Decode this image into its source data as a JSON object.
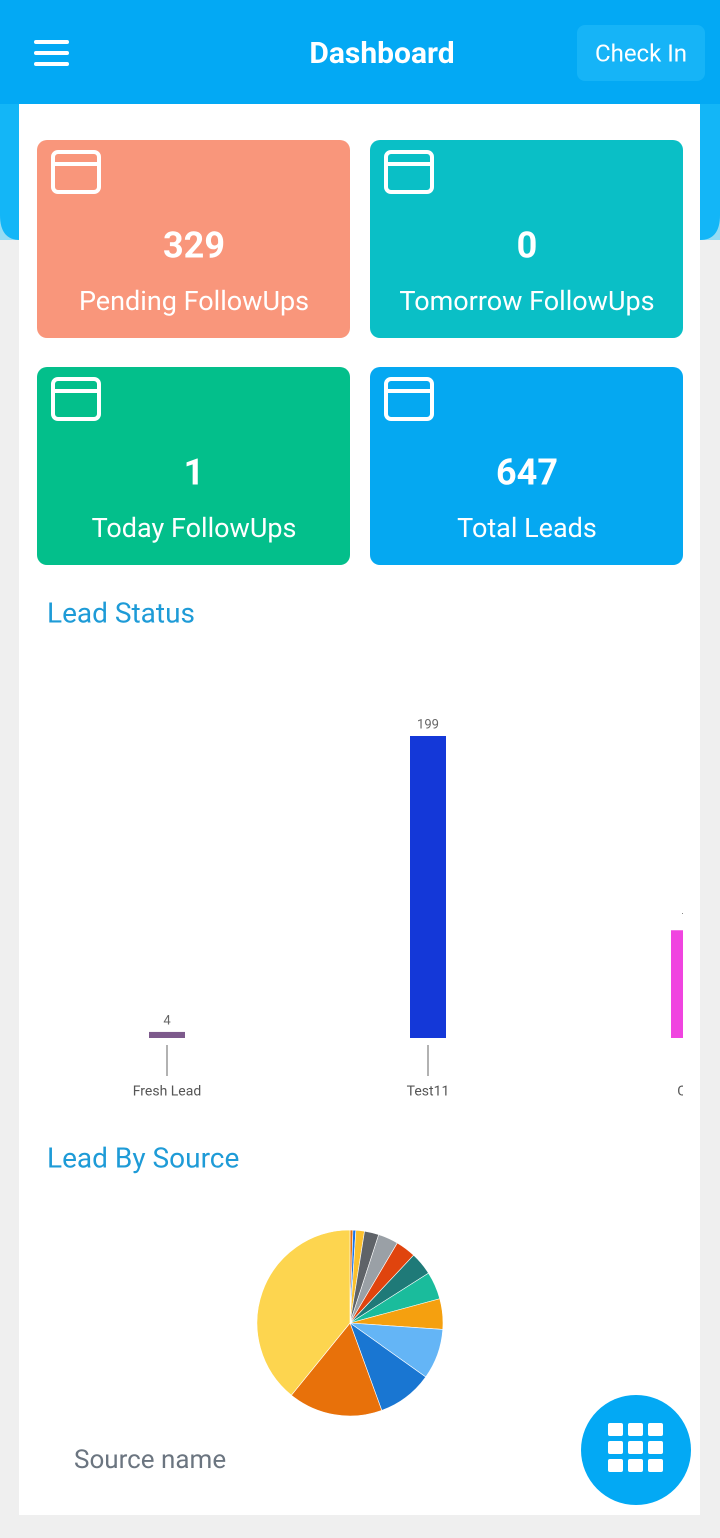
{
  "header": {
    "title": "Dashboard",
    "button": "Check In"
  },
  "cards": [
    {
      "value": 329,
      "label": "Pending FollowUps",
      "color": "#f9967b"
    },
    {
      "value": 0,
      "label": "Tomorrow FollowUps",
      "color": "#0abfc6"
    },
    {
      "value": 1,
      "label": "Today FollowUps",
      "color": "#03bf8b"
    },
    {
      "value": 647,
      "label": "Total Leads",
      "color": "#05a8f1"
    }
  ],
  "chart_data": [
    {
      "type": "bar",
      "title": "Lead Status",
      "categories": [
        "Fresh Lead",
        "Test11",
        "Call"
      ],
      "values": [
        4,
        199,
        71
      ],
      "colors": [
        "#7d5a8c",
        "#1438d8",
        "#f044e0"
      ]
    },
    {
      "type": "pie",
      "title": "Lead By Source",
      "legend_title": "Source name",
      "values": [
        0.5,
        0.5,
        1.5,
        2.5,
        3.5,
        3.5,
        4,
        4.8,
        5.3,
        8.75,
        9.6,
        16.4,
        39.15
      ],
      "colors": [
        "#e8710a",
        "#1a73e8",
        "#fbc02d",
        "#5f6368",
        "#9aa0a6",
        "#e0440e",
        "#1f7a78",
        "#1abc9c",
        "#f5a00f",
        "#64b5f6",
        "#1976d2",
        "#e8710a",
        "#fdd54f"
      ]
    }
  ]
}
